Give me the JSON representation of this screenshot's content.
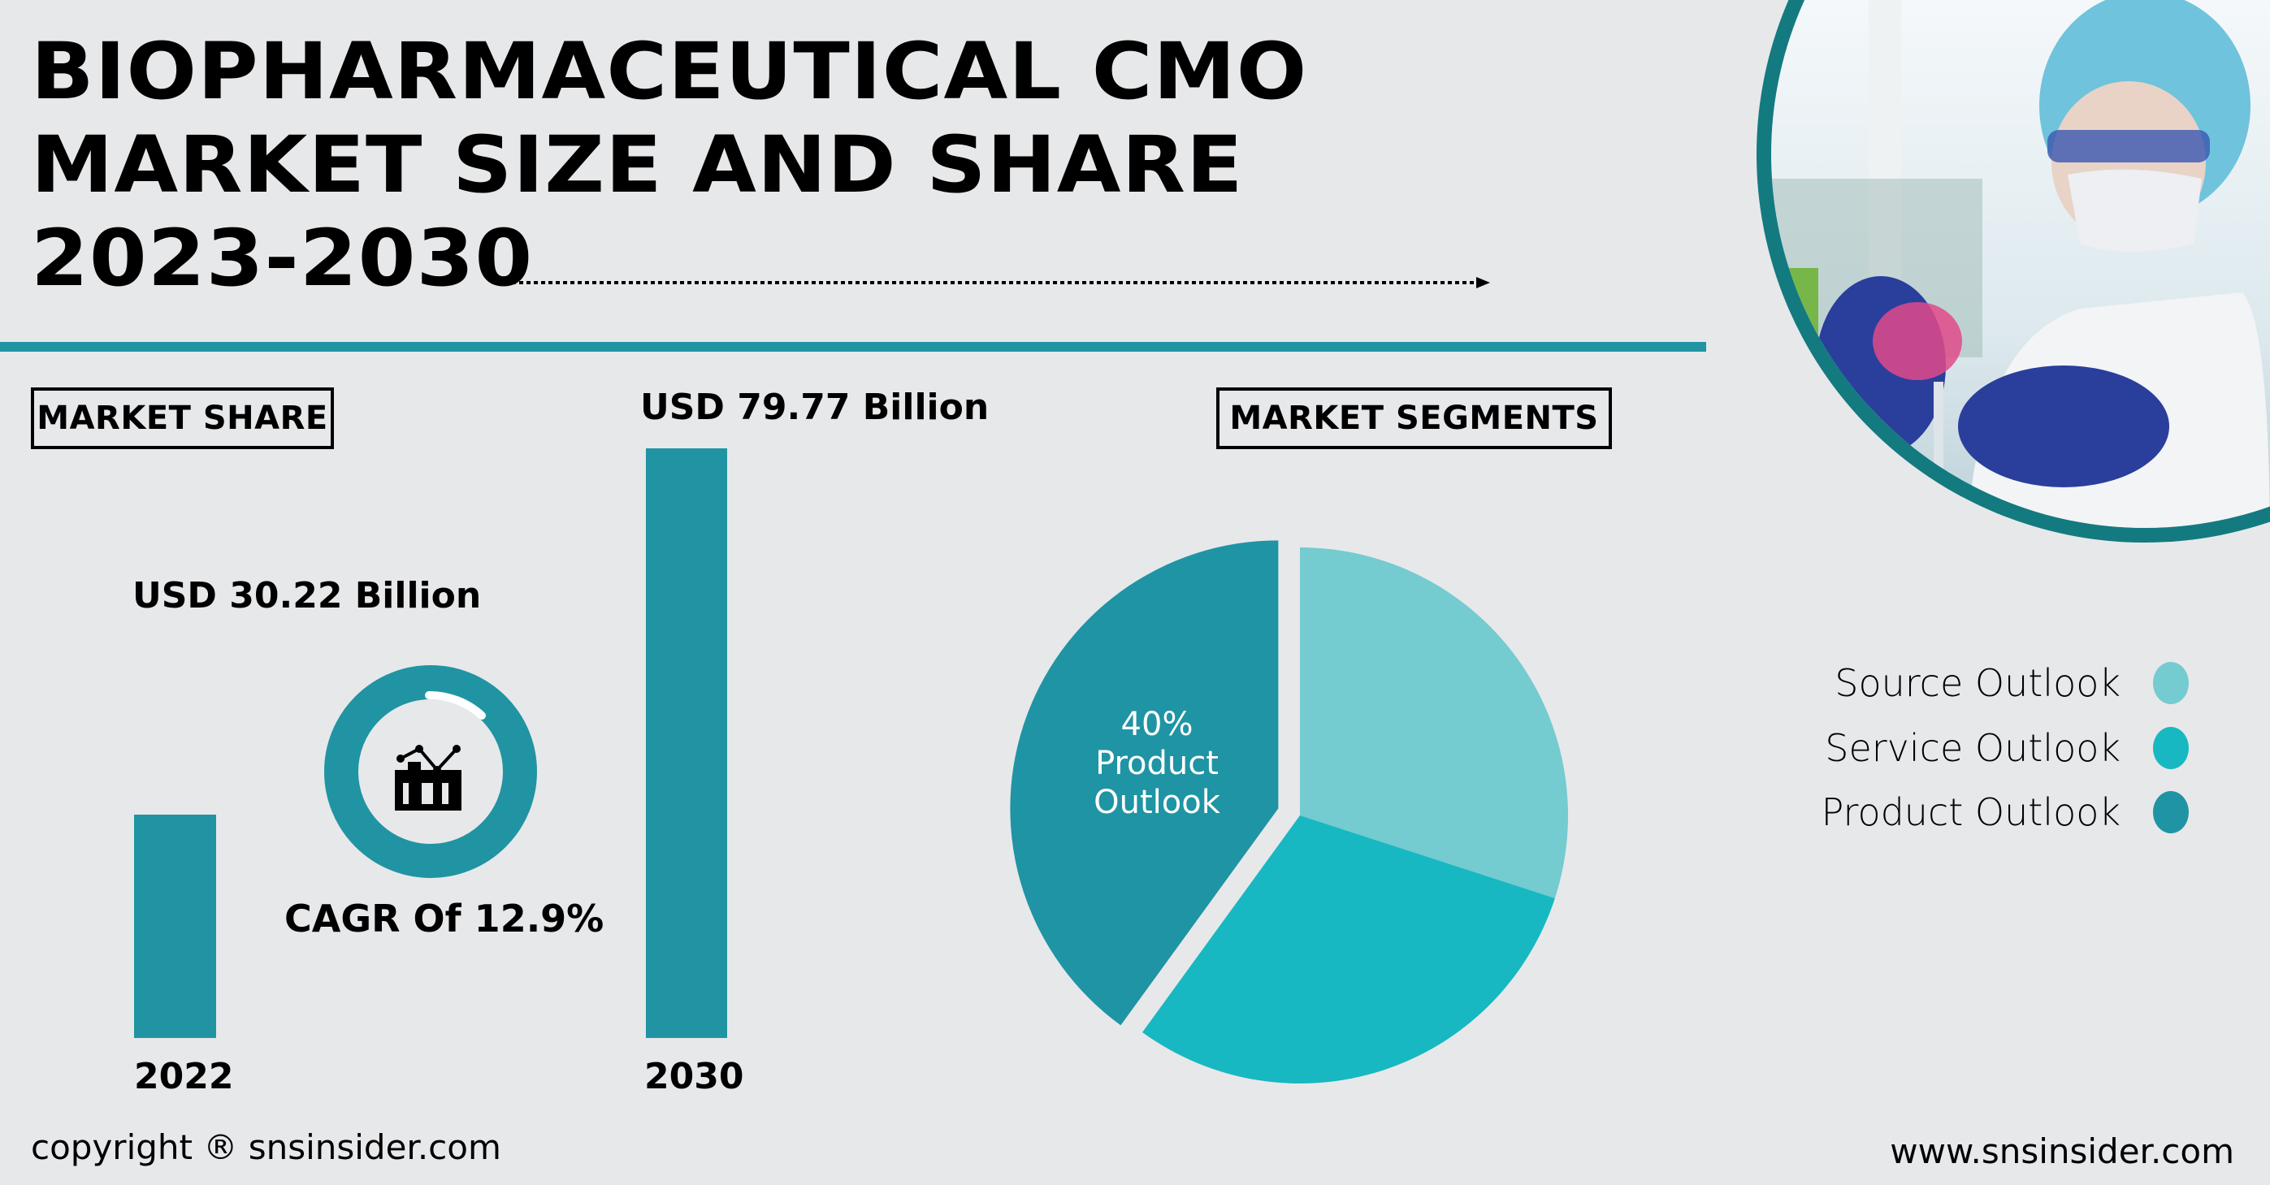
{
  "title": {
    "lines": [
      "BIOPHARMACEUTICAL CMO",
      "MARKET SIZE AND SHARE",
      "2023-2030"
    ]
  },
  "market_share": {
    "heading": "MARKET SHARE",
    "cagr_label": "CAGR Of 12.9%",
    "cagr_icon": "growth-chart-icon"
  },
  "market_segments": {
    "heading": "MARKET SEGMENTS",
    "highlight_label": {
      "percent": "40%",
      "line1": "Product",
      "line2": "Outlook"
    }
  },
  "colors": {
    "teal": "#2094A3",
    "source": "#74CBD0",
    "service": "#17B8C1",
    "product": "#1F94A4",
    "background": "#E7E8EA",
    "photo_ring": "#137A80"
  },
  "photo": {
    "description": "lab-scientist-photo"
  },
  "footer": {
    "copyright": "copyright ® snsinsider.com",
    "website": "www.snsinsider.com"
  },
  "chart_data": [
    {
      "type": "bar",
      "title": "MARKET SHARE",
      "categories": [
        "2022",
        "2030"
      ],
      "values": [
        30.22,
        79.77
      ],
      "value_labels": [
        "USD 30.22 Billion",
        "USD 79.77 Billion"
      ],
      "unit": "USD Billion",
      "xlabel": "",
      "ylabel": "",
      "ylim": [
        0,
        79.77
      ],
      "grid": false
    },
    {
      "type": "pie",
      "title": "MARKET SEGMENTS",
      "categories": [
        "Source Outlook",
        "Service Outlook",
        "Product Outlook"
      ],
      "values": [
        30,
        30,
        40
      ],
      "exploded": [
        "Product Outlook"
      ],
      "data_labels": [
        "",
        "",
        "40% Product Outlook"
      ],
      "legend": {
        "placement": "right",
        "entries": [
          "Source Outlook",
          "Service Outlook",
          "Product Outlook"
        ]
      }
    }
  ]
}
